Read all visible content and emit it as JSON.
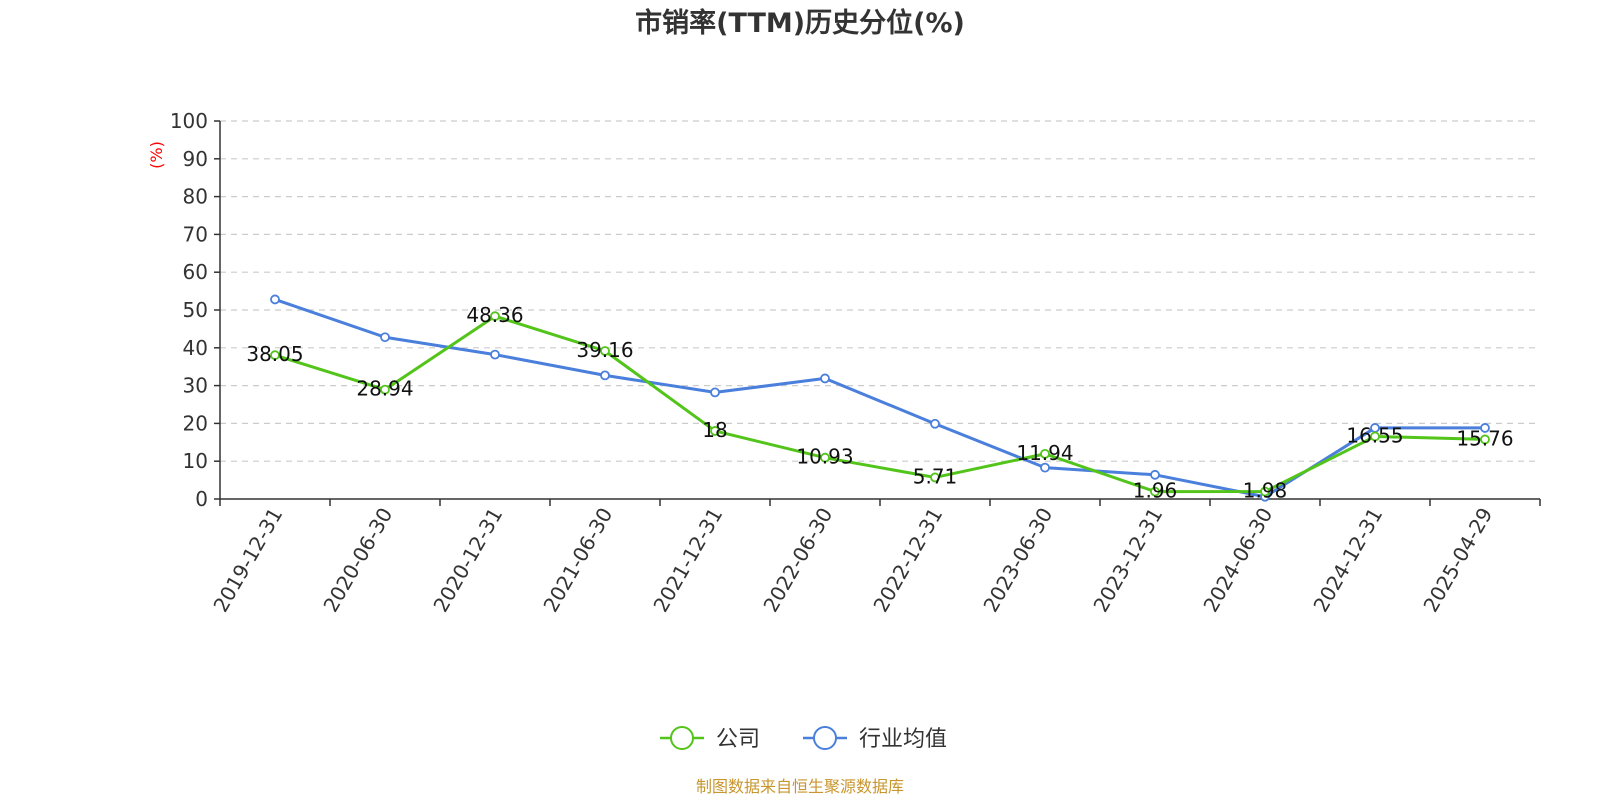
{
  "chart_data": {
    "type": "line",
    "title": "市销率(TTM)历史分位(%)",
    "ylabel": "(%)",
    "ylim": [
      0,
      100
    ],
    "yticks": [
      0,
      10,
      20,
      30,
      40,
      50,
      60,
      70,
      80,
      90,
      100
    ],
    "grid": true,
    "legend_position": "bottom",
    "categories": [
      "2019-12-31",
      "2020-06-30",
      "2020-12-31",
      "2021-06-30",
      "2021-12-31",
      "2022-06-30",
      "2022-12-31",
      "2023-06-30",
      "2023-12-31",
      "2024-06-30",
      "2024-12-31",
      "2025-04-29"
    ],
    "series": [
      {
        "name": "公司",
        "color": "#52c41a",
        "values": [
          38.05,
          28.94,
          48.36,
          39.16,
          18,
          10.93,
          5.71,
          11.94,
          1.96,
          1.98,
          16.55,
          15.76
        ],
        "labels": [
          "38.05",
          "28.94",
          "48.36",
          "39.16",
          "18",
          "10.93",
          "5.71",
          "11.94",
          "1.96",
          "1.98",
          "16.55",
          "15.76"
        ]
      },
      {
        "name": "行业均值",
        "color": "#4a7fdc",
        "values": [
          52.8,
          42.8,
          38.2,
          32.7,
          28.2,
          31.9,
          19.9,
          8.3,
          6.4,
          0.6,
          18.8,
          18.8
        ]
      }
    ],
    "source": "制图数据来自恒生聚源数据库"
  }
}
